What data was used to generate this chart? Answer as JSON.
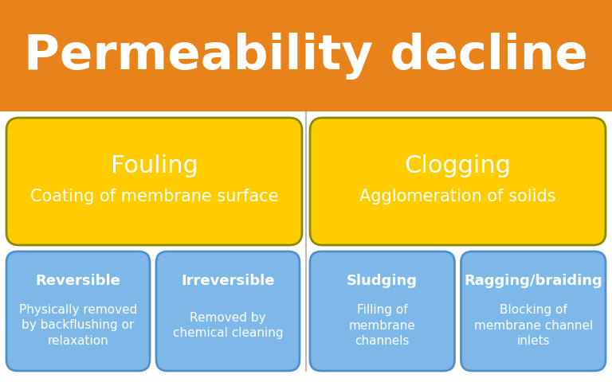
{
  "title": "Permeability decline",
  "title_bg": "#E8821A",
  "title_color": "#FFFFFF",
  "bg_color": "#FFFFFF",
  "yellow_color": "#FFCC00",
  "yellow_border": "#B8860B",
  "blue_color": "#7DB8E8",
  "blue_border": "#5090C8",
  "white_text": "#FFFFFF",
  "dark_text": "#333333",
  "fouling_title": "Fouling",
  "fouling_sub": "Coating of membrane surface",
  "clogging_title": "Clogging",
  "clogging_sub": "Agglomeration of solids",
  "box1_title": "Reversible",
  "box1_body": "Physically removed\nby backflushing or\nrelaxation",
  "box2_title": "Irreversible",
  "box2_body": "Removed by\nchemical cleaning",
  "box3_title": "Sludging",
  "box3_body": "Filling of\nmembrane\nchannels",
  "box4_title": "Ragging/braiding",
  "box4_body": "Blocking of\nmembrane channel\ninlets",
  "fig_width": 7.68,
  "fig_height": 4.8,
  "dpi": 100
}
